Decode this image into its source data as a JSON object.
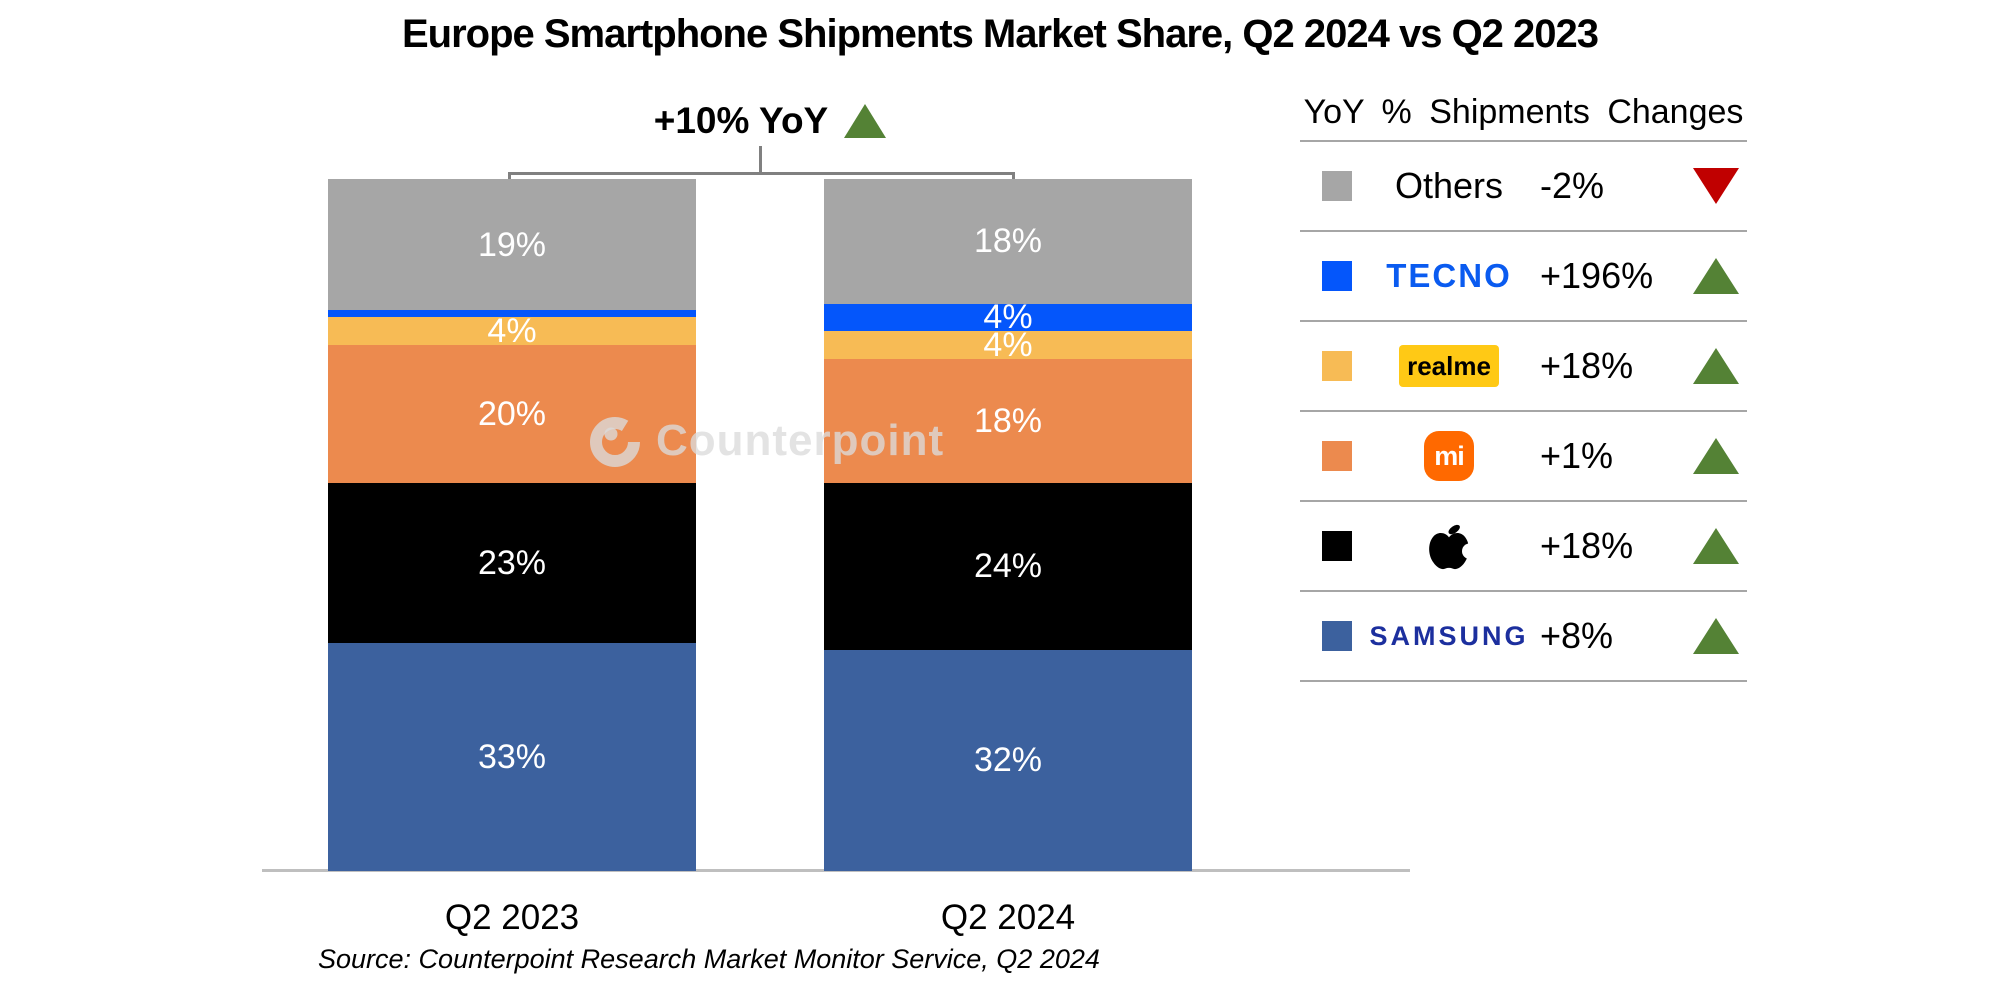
{
  "title": "Europe Smartphone Shipments Market Share, Q2 2024 vs Q2 2023",
  "annotation": {
    "label": "+10% YoY",
    "direction": "up"
  },
  "watermark": {
    "text": "Counterpoint",
    "color": "rgba(219,219,219,0.78)"
  },
  "source": "Source: Counterpoint Research Market Monitor Service, Q2 2024",
  "chart_data": {
    "type": "bar",
    "subtype": "stacked-100",
    "title": "Europe Smartphone Shipments Market Share, Q2 2024 vs Q2 2023",
    "categories": [
      "Q2 2023",
      "Q2 2024"
    ],
    "series": [
      {
        "name": "Samsung",
        "color": "#3C619E",
        "values": [
          33,
          32
        ]
      },
      {
        "name": "Apple",
        "color": "#000000",
        "values": [
          23,
          24
        ]
      },
      {
        "name": "Xiaomi",
        "color": "#EC8A4E",
        "values": [
          20,
          18
        ]
      },
      {
        "name": "realme",
        "color": "#F7BB55",
        "values": [
          4,
          4
        ]
      },
      {
        "name": "TECNO",
        "color": "#0456FB",
        "values": [
          1,
          4
        ]
      },
      {
        "name": "Others",
        "color": "#A6A6A6",
        "values": [
          19,
          18
        ]
      }
    ],
    "value_suffix": "%",
    "min_label_value": 2,
    "ylim": [
      0,
      100
    ],
    "grid": false,
    "legend_position": "right",
    "annotation": "+10% YoY"
  },
  "legend": {
    "header": "YoY % Shipments Changes",
    "rows": [
      {
        "brand": "Others",
        "logo_type": "text",
        "logo_text": "Others",
        "swatch": "#A6A6A6",
        "change": "-2%",
        "direction": "down"
      },
      {
        "brand": "TECNO",
        "logo_type": "tecno",
        "logo_text": "TECNO",
        "swatch": "#0456FB",
        "change": "+196%",
        "direction": "up"
      },
      {
        "brand": "realme",
        "logo_type": "realme",
        "logo_text": "realme",
        "swatch": "#F7BB55",
        "change": "+18%",
        "direction": "up"
      },
      {
        "brand": "Xiaomi",
        "logo_type": "mi",
        "logo_text": "mi",
        "swatch": "#EC8A4E",
        "change": "+1%",
        "direction": "up"
      },
      {
        "brand": "Apple",
        "logo_type": "apple",
        "logo_text": "",
        "swatch": "#000000",
        "change": "+18%",
        "direction": "up"
      },
      {
        "brand": "Samsung",
        "logo_type": "samsung",
        "logo_text": "SAMSUNG",
        "swatch": "#3C619E",
        "change": "+8%",
        "direction": "up"
      }
    ]
  },
  "colors": {
    "up_green": "#548235",
    "down_red": "#C00000",
    "bracket_gray": "#808080",
    "axis_line": "#BFBFBF",
    "tecno_logo_blue": "#0A5BF0",
    "realme_logo_bg": "#FFC915",
    "mi_logo_bg": "#FF6900",
    "samsung_logo_navy": "#1C2F9E"
  }
}
